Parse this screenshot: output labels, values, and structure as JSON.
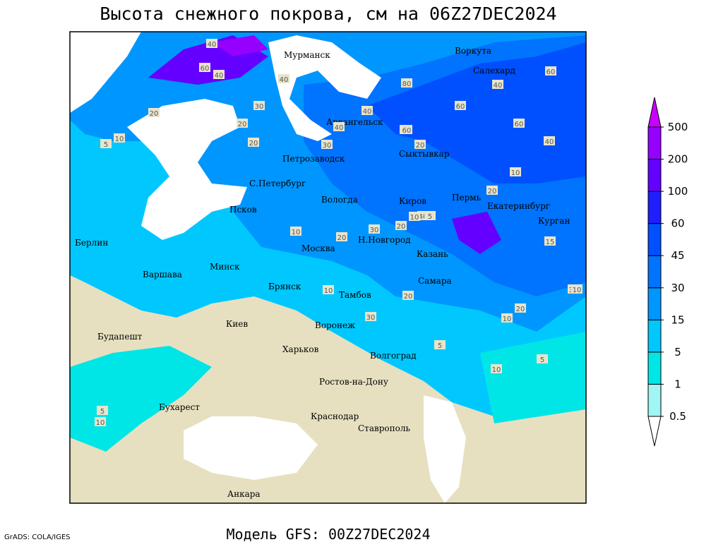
{
  "title": "Высота снежного покрова, см на 06Z27DEC2024",
  "footer": "Модель GFS: 00Z27DEC2024",
  "credit": "GrADS: COLA/IGES",
  "colorbar": {
    "levels": [
      0.5,
      1,
      5,
      15,
      30,
      45,
      60,
      100,
      200,
      500
    ],
    "colors": [
      "#ffffff",
      "#a0f5f5",
      "#00e6e6",
      "#00c8ff",
      "#0096ff",
      "#0073ff",
      "#0050ff",
      "#1e1eff",
      "#6400ff",
      "#9600ff",
      "#c800ff"
    ]
  },
  "cities": [
    "Мурманск",
    "Воркута",
    "Салехард",
    "Архангельск",
    "Петрозаводск",
    "Сыктывкар",
    "С.Петербург",
    "Вологда",
    "Киров",
    "Пермь",
    "Екатеринбург",
    "Псков",
    "Курган",
    "Берлин",
    "Н.Новгород",
    "Москва",
    "Казань",
    "Минск",
    "Варшава",
    "Самара",
    "Брянск",
    "Тамбов",
    "Киев",
    "Воронеж",
    "Будапешт",
    "Харьков",
    "Волгоград",
    "Ростов-на-Дону",
    "Бухарест",
    "Краснодар",
    "Ставрополь",
    "Анкара"
  ],
  "contour_labels": [
    "40",
    "60",
    "40",
    "40",
    "20",
    "20",
    "30",
    "40",
    "40",
    "60",
    "80",
    "60",
    "60",
    "40",
    "30",
    "20",
    "20",
    "10",
    "5",
    "10",
    "20",
    "30",
    "40",
    "20",
    "10",
    "5",
    "10",
    "15",
    "30",
    "20",
    "10",
    "5",
    "10",
    "5",
    "10",
    "5",
    "10",
    "30",
    "20",
    "10",
    "20",
    "60",
    "60",
    "40"
  ]
}
